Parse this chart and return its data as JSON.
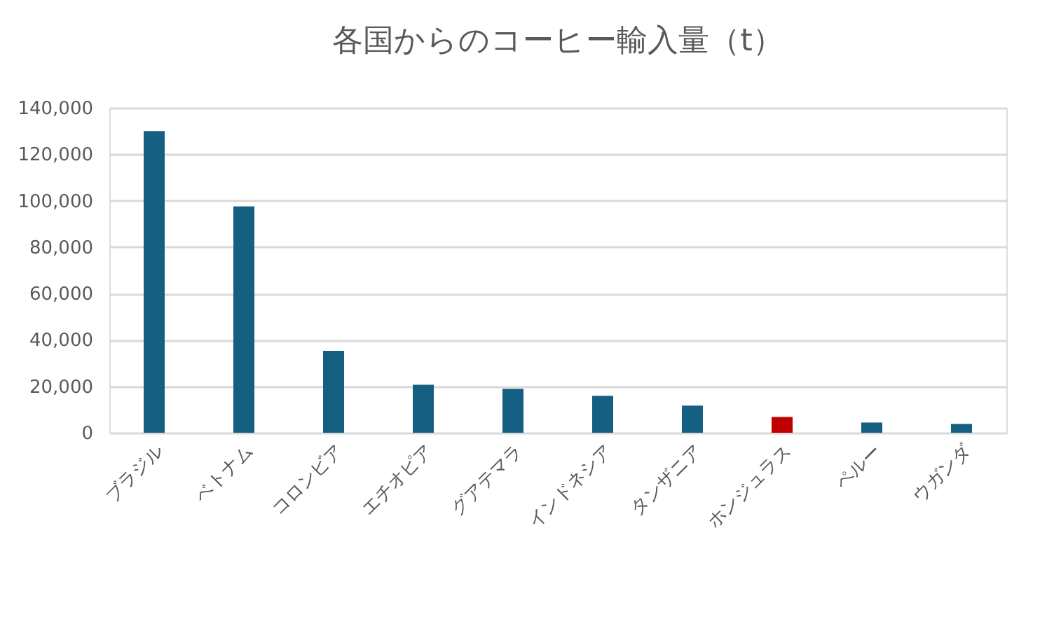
{
  "chart_data": {
    "type": "bar",
    "title": "各国からのコーヒー輸入量（t）",
    "categories": [
      "ブラジル",
      "ベトナム",
      "コロンビア",
      "エチオピア",
      "グアテマラ",
      "インドネシア",
      "タンザニア",
      "ホンジュラス",
      "ペルー",
      "ウガンダ"
    ],
    "values": [
      130000,
      97500,
      35300,
      20700,
      18900,
      15900,
      11700,
      6800,
      4400,
      3800
    ],
    "colors": [
      "#156082",
      "#156082",
      "#156082",
      "#156082",
      "#156082",
      "#156082",
      "#156082",
      "#c00000",
      "#156082",
      "#156082"
    ],
    "ylim": [
      0,
      140000
    ],
    "yticks": [
      0,
      {
        "value": 20000,
        "label": "20,000"
      },
      {
        "value": 40000,
        "label": "40,000"
      },
      {
        "value": 60000,
        "label": "60,000"
      },
      {
        "value": 80000,
        "label": "80,000"
      },
      {
        "value": 100000,
        "label": "100,000"
      },
      {
        "value": 120000,
        "label": "120,000"
      },
      {
        "value": 140000,
        "label": "140,000"
      }
    ],
    "grid": "y"
  }
}
